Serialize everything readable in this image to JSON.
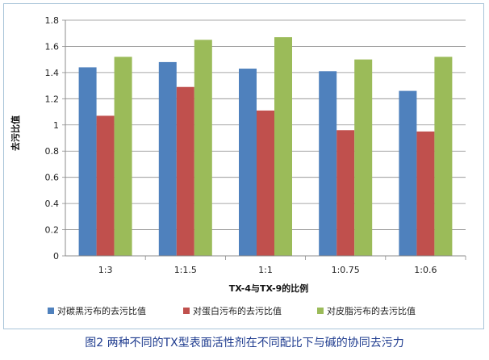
{
  "chart_data": {
    "type": "bar",
    "title": "",
    "xlabel": "TX-4与TX-9的比例",
    "ylabel": "去污比值",
    "categories": [
      "1:3",
      "1:1.5",
      "1:1",
      "1:0.75",
      "1:0.6"
    ],
    "ylim": [
      0,
      1.8
    ],
    "yticks": [
      "0",
      "0.2",
      "0.4",
      "0.6",
      "0.8",
      "1",
      "1.2",
      "1.4",
      "1.6",
      "1.8"
    ],
    "grid": true,
    "legend_position": "bottom",
    "series": [
      {
        "name": "对碳黑污布的去污比值",
        "color": "#4f81bd",
        "values": [
          1.44,
          1.48,
          1.43,
          1.41,
          1.26
        ]
      },
      {
        "name": "对蛋白污布的去污比值",
        "color": "#c0504d",
        "values": [
          1.07,
          1.29,
          1.11,
          0.96,
          0.95
        ]
      },
      {
        "name": "对皮脂污布的去污比值",
        "color": "#9bbb59",
        "values": [
          1.52,
          1.65,
          1.67,
          1.5,
          1.52
        ]
      }
    ]
  },
  "caption": "图2 两种不同的TX型表面活性剂在不同配比下与碱的协同去污力"
}
